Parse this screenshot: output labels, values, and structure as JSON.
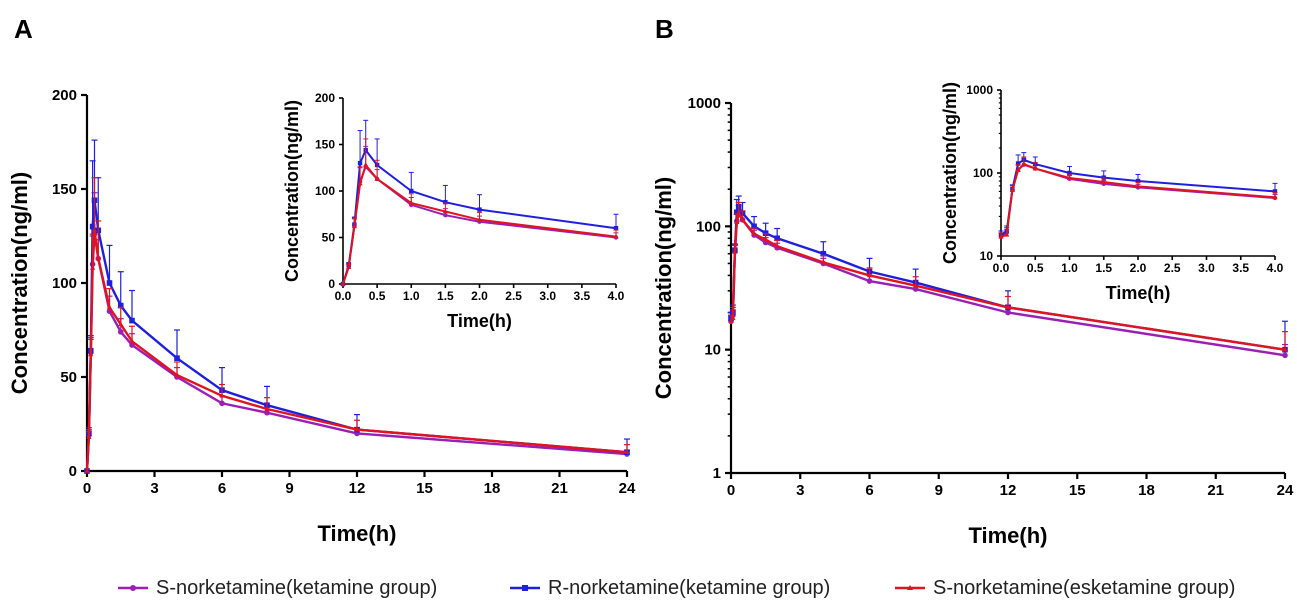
{
  "panels": {
    "a": "A",
    "b": "B"
  },
  "legend": [
    {
      "label": "S-norketamine(ketamine group)",
      "color": "#9b1fb5"
    },
    {
      "label": "R-norketamine(ketamine group)",
      "color": "#1f1fe0"
    },
    {
      "label": "S-norketamine(esketamine group)",
      "color": "#e0141e"
    }
  ],
  "chart_data": [
    {
      "panel": "A",
      "type": "line",
      "xlabel": "Time(h)",
      "ylabel": "Concentration(ng/ml)",
      "xlim": [
        0,
        24
      ],
      "ylim": [
        0,
        200
      ],
      "xticks": [
        "0",
        "3",
        "6",
        "9",
        "12",
        "15",
        "18",
        "21",
        "24"
      ],
      "yticks": [
        "0",
        "50",
        "100",
        "150",
        "200"
      ],
      "x": [
        0,
        0.083,
        0.167,
        0.25,
        0.333,
        0.5,
        1,
        1.5,
        2,
        4,
        6,
        8,
        12,
        24
      ],
      "series": [
        {
          "name": "S-norketamine(ketamine group)",
          "color": "#9b1fb5",
          "values": [
            0,
            19,
            63,
            110,
            126,
            113,
            85,
            74,
            67,
            50,
            36,
            31,
            20,
            9
          ],
          "errors": [
            0,
            3,
            8,
            15,
            22,
            10,
            8,
            7,
            6,
            5,
            4,
            4,
            3,
            2
          ]
        },
        {
          "name": "R-norketamine(ketamine group)",
          "color": "#1f1fe0",
          "values": [
            0,
            20,
            64,
            130,
            144,
            128,
            100,
            88,
            80,
            60,
            43,
            35,
            22,
            10
          ],
          "errors": [
            0,
            3,
            8,
            35,
            32,
            28,
            20,
            18,
            16,
            15,
            12,
            10,
            8,
            7
          ]
        },
        {
          "name": "S-norketamine(esketamine group)",
          "color": "#e0141e",
          "values": [
            0,
            18,
            62,
            108,
            128,
            113,
            87,
            78,
            69,
            51,
            40,
            33,
            22,
            10
          ],
          "errors": [
            0,
            3,
            8,
            18,
            28,
            20,
            10,
            9,
            8,
            7,
            6,
            6,
            5,
            4
          ]
        }
      ],
      "inset": {
        "xlabel": "Time(h)",
        "ylabel": "Concentration(ng/ml)",
        "xlim": [
          0,
          4
        ],
        "ylim": [
          0,
          200
        ],
        "xticks": [
          "0.0",
          "0.5",
          "1.0",
          "1.5",
          "2.0",
          "2.5",
          "3.0",
          "3.5",
          "4.0"
        ],
        "yticks": [
          "0",
          "50",
          "100",
          "150",
          "200"
        ]
      }
    },
    {
      "panel": "B",
      "type": "line",
      "xlabel": "Time(h)",
      "ylabel": "Concentration(ng/ml)",
      "yscale": "log",
      "xlim": [
        0,
        24
      ],
      "ylim": [
        1,
        1000
      ],
      "xticks": [
        "0",
        "3",
        "6",
        "9",
        "12",
        "15",
        "18",
        "21",
        "24"
      ],
      "yticks": [
        "1",
        "10",
        "100",
        "1000"
      ],
      "x": [
        0,
        0.083,
        0.167,
        0.25,
        0.333,
        0.5,
        1,
        1.5,
        2,
        4,
        6,
        8,
        12,
        24
      ],
      "series": [
        {
          "name": "S-norketamine(ketamine group)",
          "color": "#9b1fb5",
          "values": [
            17,
            19,
            63,
            110,
            126,
            113,
            85,
            74,
            67,
            50,
            36,
            31,
            20,
            9
          ],
          "errors": [
            2,
            3,
            8,
            15,
            22,
            10,
            8,
            7,
            6,
            5,
            4,
            4,
            3,
            2
          ]
        },
        {
          "name": "R-norketamine(ketamine group)",
          "color": "#1f1fe0",
          "values": [
            18,
            20,
            64,
            130,
            144,
            128,
            100,
            88,
            80,
            60,
            43,
            35,
            22,
            10
          ],
          "errors": [
            2,
            3,
            8,
            35,
            32,
            28,
            20,
            18,
            16,
            15,
            12,
            10,
            8,
            7
          ]
        },
        {
          "name": "S-norketamine(esketamine group)",
          "color": "#e0141e",
          "values": [
            17,
            18,
            62,
            108,
            128,
            113,
            87,
            78,
            69,
            51,
            40,
            33,
            22,
            10
          ],
          "errors": [
            2,
            3,
            8,
            18,
            28,
            20,
            10,
            9,
            8,
            7,
            6,
            6,
            5,
            4
          ]
        }
      ],
      "inset": {
        "xlabel": "Time(h)",
        "ylabel": "Concentration(ng/ml)",
        "yscale": "log",
        "xlim": [
          0,
          4
        ],
        "ylim": [
          10,
          1000
        ],
        "xticks": [
          "0.0",
          "0.5",
          "1.0",
          "1.5",
          "2.0",
          "2.5",
          "3.0",
          "3.5",
          "4.0"
        ],
        "yticks": [
          "10",
          "100",
          "1000"
        ]
      }
    }
  ]
}
